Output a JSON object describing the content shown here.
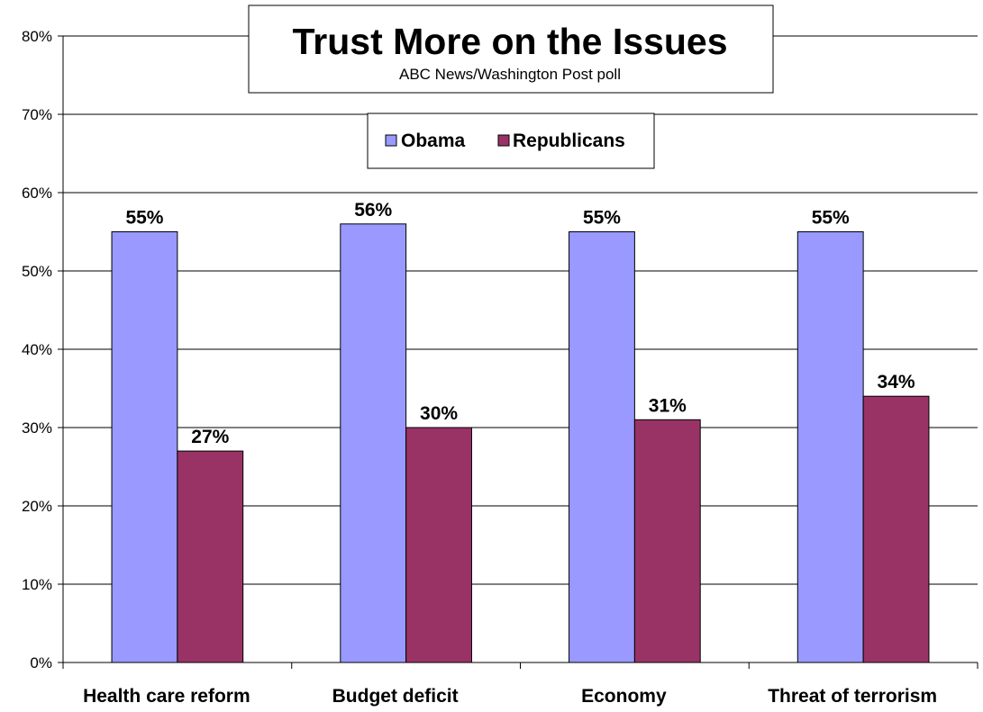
{
  "chart_data": {
    "type": "bar",
    "title": "Trust More on the Issues",
    "subtitle": "ABC News/Washington Post poll",
    "categories": [
      "Health care reform",
      "Budget deficit",
      "Economy",
      "Threat of terrorism"
    ],
    "series": [
      {
        "name": "Obama",
        "values": [
          55,
          56,
          55,
          55
        ],
        "labels": [
          "55%",
          "56%",
          "55%",
          "55%"
        ],
        "color": "#9999FF"
      },
      {
        "name": "Republicans",
        "values": [
          27,
          30,
          31,
          34
        ],
        "labels": [
          "27%",
          "30%",
          "31%",
          "34%"
        ],
        "color": "#993366"
      }
    ],
    "ylim": [
      0,
      80
    ],
    "yticks": [
      0,
      10,
      20,
      30,
      40,
      50,
      60,
      70,
      80
    ],
    "ytick_labels": [
      "0%",
      "10%",
      "20%",
      "30%",
      "40%",
      "50%",
      "60%",
      "70%",
      "80%"
    ],
    "xlabel": "",
    "ylabel": "",
    "grid": "horizontal",
    "legend_position": "top-center"
  }
}
